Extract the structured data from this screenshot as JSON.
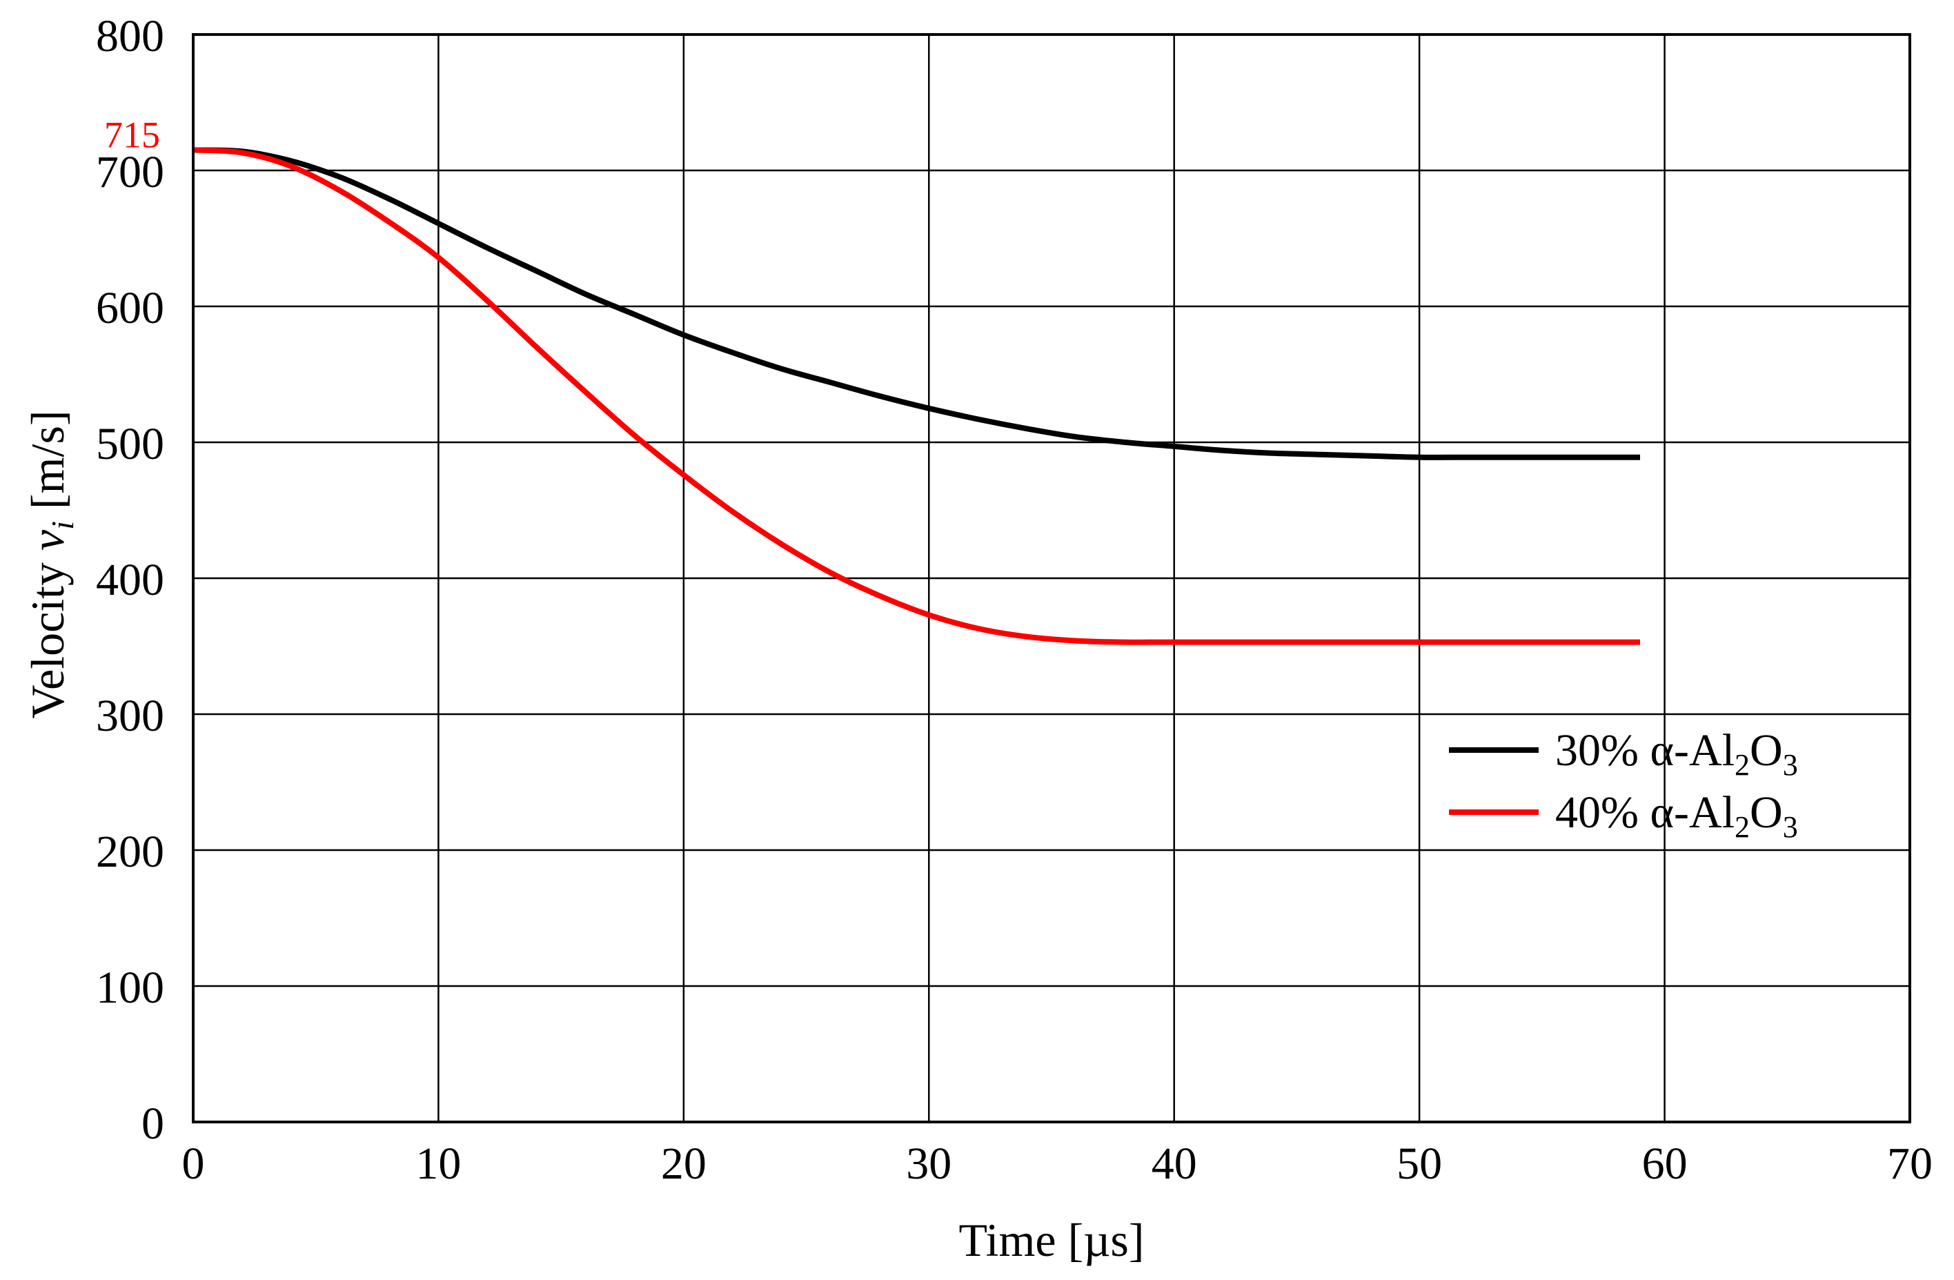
{
  "chart_data": {
    "type": "line",
    "title": "",
    "xlabel": "Time [µs]",
    "ylabel": {
      "prefix": "Velocity ",
      "symbol": "v",
      "subscript": "i",
      "suffix": " [m/s]"
    },
    "xlim": [
      0,
      70
    ],
    "ylim": [
      0,
      800
    ],
    "xticks": [
      0,
      10,
      20,
      30,
      40,
      50,
      60,
      70
    ],
    "yticks": [
      0,
      100,
      200,
      300,
      400,
      500,
      600,
      700,
      800
    ],
    "grid": true,
    "annotation": {
      "text": "715",
      "value": 715,
      "color": "#ff0000"
    },
    "legend": {
      "position": "right"
    },
    "series": [
      {
        "name": "30% α-Al2O3",
        "label": {
          "prefix": "30%  α-Al",
          "sub1": "2",
          "mid": "O",
          "sub2": "3"
        },
        "color": "#000000",
        "x": [
          0,
          2,
          4,
          6,
          8,
          10,
          12,
          14,
          16,
          18,
          20,
          22,
          24,
          26,
          28,
          30,
          32,
          34,
          36,
          38,
          40,
          42,
          44,
          46,
          48,
          50,
          52,
          54,
          56,
          58,
          59
        ],
        "y": [
          715,
          714,
          707,
          695,
          679,
          661,
          643,
          626,
          609,
          594,
          579,
          566,
          554,
          544,
          534,
          525,
          517,
          510,
          504,
          500,
          497,
          494,
          492,
          491,
          490,
          489,
          489,
          489,
          489,
          489,
          489
        ]
      },
      {
        "name": "40% α-Al2O3",
        "label": {
          "prefix": "40%  α-Al",
          "sub1": "2",
          "mid": "O",
          "sub2": "3"
        },
        "color": "#ff0000",
        "x": [
          0,
          2,
          4,
          6,
          8,
          10,
          12,
          14,
          16,
          18,
          20,
          22,
          24,
          26,
          28,
          30,
          32,
          34,
          36,
          38,
          40,
          45,
          50,
          55,
          59
        ],
        "y": [
          715,
          713,
          703,
          685,
          662,
          636,
          604,
          570,
          537,
          505,
          476,
          449,
          425,
          404,
          387,
          373,
          363,
          357,
          354,
          353,
          353,
          353,
          353,
          353,
          353
        ]
      }
    ]
  }
}
